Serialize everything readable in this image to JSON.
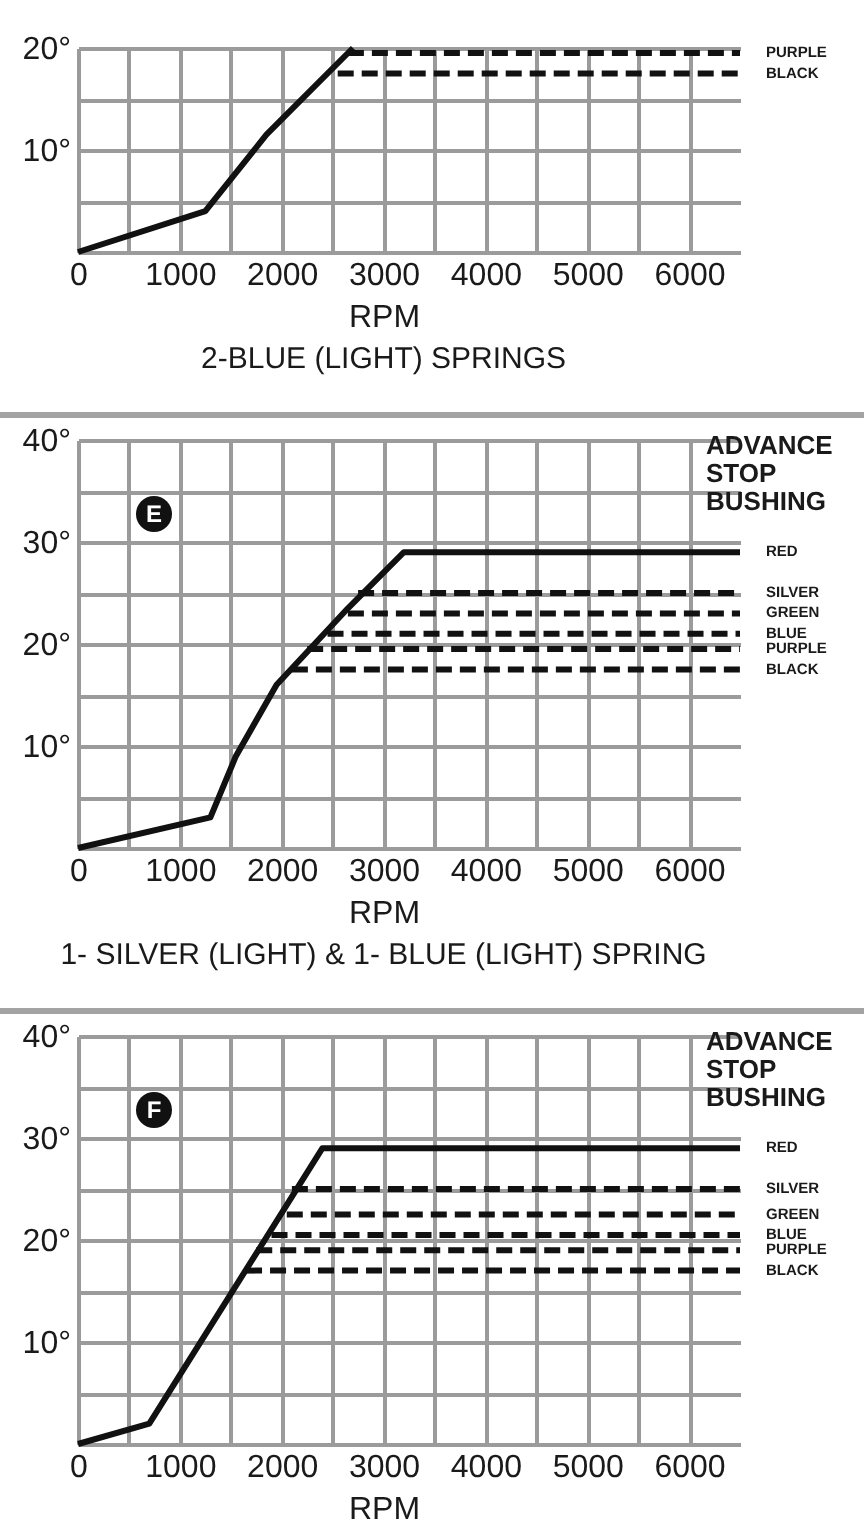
{
  "chart_data": [
    {
      "type": "line",
      "title": "2-BLUE (LIGHT) SPRINGS",
      "xlabel": "RPM",
      "xlim": [
        0,
        6500
      ],
      "ylim": [
        0,
        20
      ],
      "xticks": [
        0,
        {
          "value": 500,
          "label": null
        },
        1000,
        {
          "value": 1500,
          "label": null
        },
        2000,
        {
          "value": 2500,
          "label": null
        },
        3000,
        {
          "value": 3500,
          "label": null
        },
        4000,
        {
          "value": 4500,
          "label": null
        },
        5000,
        {
          "value": 5500,
          "label": null
        },
        6000
      ],
      "yticks": [
        {
          "value": 0,
          "label": null
        },
        {
          "value": 5,
          "label": null
        },
        {
          "value": 10,
          "label": "10°"
        },
        {
          "value": 15,
          "label": null
        },
        {
          "value": 20,
          "label": "20°"
        }
      ],
      "grid": true,
      "series": [
        {
          "color": "#111111",
          "line_style": "solid",
          "x": [
            0,
            1250,
            1850,
            2700
          ],
          "values": [
            0,
            4,
            11.5,
            20
          ]
        },
        {
          "name": "PURPLE",
          "color": "#111111",
          "line_style": "dashed",
          "x": [
            2650,
            6500
          ],
          "values": [
            19.5,
            19.5
          ]
        },
        {
          "name": "BLACK",
          "color": "#111111",
          "line_style": "dashed",
          "x": [
            2550,
            6500
          ],
          "values": [
            17.5,
            17.5
          ]
        }
      ]
    },
    {
      "type": "line",
      "title": "1- SILVER (LIGHT) & 1- BLUE (LIGHT) SPRING",
      "xlabel": "RPM",
      "legend_title": "ADVANCE STOP BUSHING",
      "annotations": [
        "E"
      ],
      "xlim": [
        0,
        6500
      ],
      "ylim": [
        0,
        40
      ],
      "xticks": [
        0,
        {
          "value": 500,
          "label": null
        },
        1000,
        {
          "value": 1500,
          "label": null
        },
        2000,
        {
          "value": 2500,
          "label": null
        },
        3000,
        {
          "value": 3500,
          "label": null
        },
        4000,
        {
          "value": 4500,
          "label": null
        },
        5000,
        {
          "value": 5500,
          "label": null
        },
        6000
      ],
      "yticks": [
        {
          "value": 0,
          "label": null
        },
        {
          "value": 5,
          "label": null
        },
        {
          "value": 10,
          "label": "10°"
        },
        {
          "value": 15,
          "label": null
        },
        {
          "value": 20,
          "label": "20°"
        },
        {
          "value": 25,
          "label": null
        },
        {
          "value": 30,
          "label": "30°"
        },
        {
          "value": 35,
          "label": null
        },
        {
          "value": 40,
          "label": "40°"
        }
      ],
      "grid": true,
      "series": [
        {
          "name": "RED",
          "color": "#111111",
          "line_style": "solid",
          "x": [
            0,
            1300,
            1550,
            1950,
            2650,
            3200,
            6500
          ],
          "values": [
            0,
            3,
            9,
            16,
            23.5,
            29,
            29
          ]
        },
        {
          "name": "SILVER",
          "color": "#111111",
          "line_style": "dashed",
          "x": [
            2750,
            6500
          ],
          "values": [
            25,
            25
          ]
        },
        {
          "name": "GREEN",
          "color": "#111111",
          "line_style": "dashed",
          "x": [
            2650,
            6500
          ],
          "values": [
            23,
            23
          ]
        },
        {
          "name": "BLUE",
          "color": "#111111",
          "line_style": "dashed",
          "x": [
            2450,
            6500
          ],
          "values": [
            21,
            21
          ]
        },
        {
          "name": "PURPLE",
          "color": "#111111",
          "line_style": "dashed",
          "x": [
            2250,
            6500
          ],
          "values": [
            19.5,
            19.5
          ]
        },
        {
          "name": "BLACK",
          "color": "#111111",
          "line_style": "dashed",
          "x": [
            2100,
            6500
          ],
          "values": [
            17.5,
            17.5
          ]
        }
      ]
    },
    {
      "type": "line",
      "xlabel": "RPM",
      "legend_title": "ADVANCE STOP BUSHING",
      "annotations": [
        "F"
      ],
      "xlim": [
        0,
        6500
      ],
      "ylim": [
        0,
        40
      ],
      "xticks": [
        0,
        {
          "value": 500,
          "label": null
        },
        1000,
        {
          "value": 1500,
          "label": null
        },
        2000,
        {
          "value": 2500,
          "label": null
        },
        3000,
        {
          "value": 3500,
          "label": null
        },
        4000,
        {
          "value": 4500,
          "label": null
        },
        5000,
        {
          "value": 5500,
          "label": null
        },
        6000
      ],
      "yticks": [
        {
          "value": 0,
          "label": null
        },
        {
          "value": 5,
          "label": null
        },
        {
          "value": 10,
          "label": "10°"
        },
        {
          "value": 15,
          "label": null
        },
        {
          "value": 20,
          "label": "20°"
        },
        {
          "value": 25,
          "label": null
        },
        {
          "value": 30,
          "label": "30°"
        },
        {
          "value": 35,
          "label": null
        },
        {
          "value": 40,
          "label": "40°"
        }
      ],
      "grid": true,
      "series": [
        {
          "name": "RED",
          "color": "#111111",
          "line_style": "solid",
          "x": [
            0,
            700,
            2400,
            6500
          ],
          "values": [
            0,
            2,
            29,
            29
          ]
        },
        {
          "name": "SILVER",
          "color": "#111111",
          "line_style": "dashed",
          "x": [
            2100,
            6500
          ],
          "values": [
            25,
            25
          ]
        },
        {
          "name": "GREEN",
          "color": "#111111",
          "line_style": "dashed",
          "x": [
            2050,
            6500
          ],
          "values": [
            22.5,
            22.5
          ]
        },
        {
          "name": "BLUE",
          "color": "#111111",
          "line_style": "dashed",
          "x": [
            1900,
            6500
          ],
          "values": [
            20.5,
            20.5
          ]
        },
        {
          "name": "PURPLE",
          "color": "#111111",
          "line_style": "dashed",
          "x": [
            1750,
            6500
          ],
          "values": [
            19,
            19
          ]
        },
        {
          "name": "BLACK",
          "color": "#111111",
          "line_style": "dashed",
          "x": [
            1650,
            6500
          ],
          "values": [
            17,
            17
          ]
        }
      ]
    }
  ]
}
